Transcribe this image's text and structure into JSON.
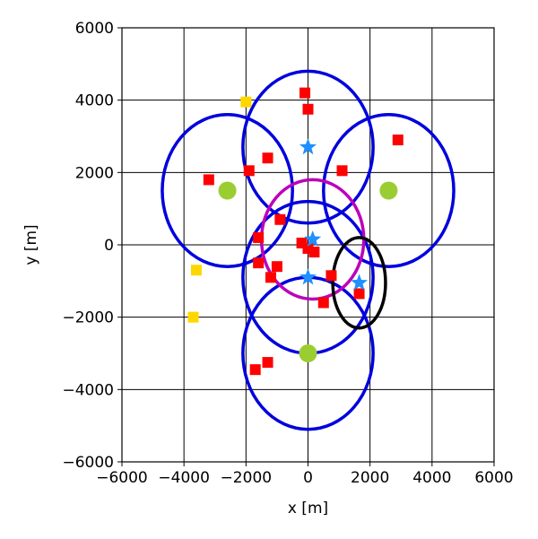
{
  "chart_data": {
    "type": "scatter",
    "title": "",
    "xlabel": "x [m]",
    "ylabel": "y [m]",
    "xlim": [
      -6000,
      6000
    ],
    "ylim": [
      -6000,
      6000
    ],
    "xticks": [
      -6000,
      -4000,
      -2000,
      0,
      2000,
      4000,
      6000
    ],
    "yticks": [
      -6000,
      -4000,
      -2000,
      0,
      2000,
      4000,
      6000
    ],
    "xtick_labels": [
      "−6000",
      "−4000",
      "−2000",
      "0",
      "2000",
      "4000",
      "6000"
    ],
    "ytick_labels": [
      "−6000",
      "−4000",
      "−2000",
      "0",
      "2000",
      "4000",
      "6000"
    ],
    "grid": true,
    "series": [
      {
        "marker": "square",
        "color": "#ff0000",
        "points": [
          [
            -100,
            4200
          ],
          [
            0,
            3750
          ],
          [
            2900,
            2900
          ],
          [
            -1300,
            2400
          ],
          [
            1100,
            2050
          ],
          [
            -1900,
            2050
          ],
          [
            -3200,
            1800
          ],
          [
            -900,
            700
          ],
          [
            -1600,
            200
          ],
          [
            -200,
            50
          ],
          [
            0,
            -100
          ],
          [
            200,
            -200
          ],
          [
            -1600,
            -500
          ],
          [
            -1000,
            -600
          ],
          [
            -1200,
            -900
          ],
          [
            750,
            -850
          ],
          [
            1650,
            -1350
          ],
          [
            500,
            -1600
          ],
          [
            -1300,
            -3250
          ],
          [
            -1700,
            -3450
          ]
        ]
      },
      {
        "marker": "square",
        "color": "#ffd700",
        "points": [
          [
            -2000,
            3950
          ],
          [
            -3600,
            -700
          ],
          [
            -3700,
            -2000
          ]
        ]
      },
      {
        "marker": "circle",
        "color": "#9acd32",
        "points": [
          [
            -2600,
            1500
          ],
          [
            2600,
            1500
          ],
          [
            0,
            -3000
          ]
        ]
      },
      {
        "marker": "star",
        "color": "#1e90ff",
        "points": [
          [
            0,
            2700
          ],
          [
            150,
            150
          ],
          [
            0,
            -900
          ],
          [
            1650,
            -1050
          ]
        ]
      }
    ],
    "ellipses": [
      {
        "color": "#0000dd",
        "cx": 0,
        "cy": 2700,
        "rx": 2100,
        "ry": 2100
      },
      {
        "color": "#0000dd",
        "cx": -2600,
        "cy": 1500,
        "rx": 2100,
        "ry": 2100
      },
      {
        "color": "#0000dd",
        "cx": 2600,
        "cy": 1500,
        "rx": 2100,
        "ry": 2100
      },
      {
        "color": "#0000dd",
        "cx": 0,
        "cy": -900,
        "rx": 2100,
        "ry": 2100
      },
      {
        "color": "#0000dd",
        "cx": 0,
        "cy": -3000,
        "rx": 2100,
        "ry": 2100
      },
      {
        "color": "#bb00bb",
        "cx": 150,
        "cy": 150,
        "rx": 1650,
        "ry": 1650
      },
      {
        "color": "#000000",
        "cx": 1650,
        "cy": -1050,
        "rx": 850,
        "ry": 1250
      }
    ]
  }
}
